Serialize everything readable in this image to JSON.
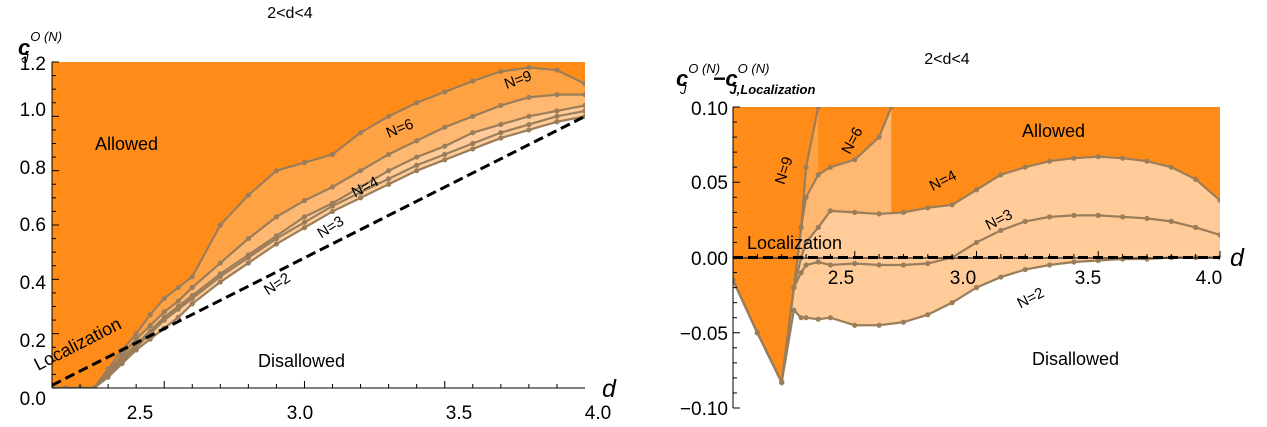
{
  "panels": [
    {
      "title": "2<d<4",
      "ylabel": {
        "main": "c",
        "sub": "J",
        "sup": "O (N)"
      },
      "xvar": "d",
      "region_labels": {
        "allowed": "Allowed",
        "disallowed": "Disallowed"
      },
      "localization_label": "Localization",
      "xticks": [
        "2.5",
        "3.0",
        "3.5",
        "4.0"
      ],
      "yticks": [
        "0.0",
        "0.2",
        "0.4",
        "0.6",
        "0.8",
        "1.0",
        "1.2"
      ]
    },
    {
      "title": "2<d<4",
      "ylabel": {
        "main1": "c",
        "sub1": "J",
        "sup1": "O (N)",
        "minus": "−",
        "main2": "c",
        "sub2a": "J,",
        "sub2b": "Localization",
        "sup2": "O (N)"
      },
      "xvar": "d",
      "region_labels": {
        "allowed": "Allowed",
        "disallowed": "Disallowed"
      },
      "localization_label": "Localization",
      "xticks": [
        "2.5",
        "3.0",
        "3.5",
        "4.0"
      ],
      "yticks": [
        "0.10",
        "0.05",
        "0.00",
        "−0.05",
        "−0.10"
      ]
    }
  ],
  "colors": {
    "allowed": "#ff8c19",
    "band1": "#ffa244",
    "band2": "#ffb871",
    "band3": "#ffcc99",
    "curve": "#9c7d59",
    "localization": "#000000"
  },
  "chart_data": [
    {
      "type": "line",
      "title": "2<d<4",
      "xlabel": "d",
      "ylabel": "c_J^{O(N)}",
      "xlim": [
        2.1,
        4.0
      ],
      "ylim": [
        0,
        1.2
      ],
      "localization_line": {
        "name": "Localization",
        "x": [
          2.1,
          4.0
        ],
        "y": [
          0.01,
          1.0
        ]
      },
      "series": [
        {
          "name": "N=9",
          "x": [
            2.1,
            2.15,
            2.2,
            2.25,
            2.3,
            2.35,
            2.4,
            2.45,
            2.5,
            2.55,
            2.6,
            2.7,
            2.8,
            2.9,
            3.0,
            3.1,
            3.2,
            3.3,
            3.4,
            3.5,
            3.6,
            3.7,
            3.8,
            3.9,
            4.0
          ],
          "y": [
            0.0,
            0.0,
            0.0,
            0.0,
            0.07,
            0.14,
            0.2,
            0.27,
            0.33,
            0.37,
            0.41,
            0.6,
            0.71,
            0.8,
            0.83,
            0.86,
            0.94,
            1.0,
            1.05,
            1.09,
            1.13,
            1.165,
            1.18,
            1.17,
            1.12
          ]
        },
        {
          "name": "N=6",
          "x": [
            2.1,
            2.15,
            2.2,
            2.25,
            2.3,
            2.35,
            2.4,
            2.45,
            2.5,
            2.55,
            2.6,
            2.7,
            2.8,
            2.9,
            3.0,
            3.1,
            3.2,
            3.3,
            3.4,
            3.5,
            3.6,
            3.7,
            3.8,
            3.9,
            4.0
          ],
          "y": [
            0.0,
            0.0,
            0.0,
            0.0,
            0.06,
            0.12,
            0.18,
            0.23,
            0.28,
            0.32,
            0.37,
            0.46,
            0.55,
            0.63,
            0.69,
            0.74,
            0.8,
            0.86,
            0.91,
            0.96,
            1.0,
            1.04,
            1.07,
            1.08,
            1.08
          ]
        },
        {
          "name": "N=4",
          "x": [
            2.1,
            2.15,
            2.2,
            2.25,
            2.3,
            2.35,
            2.4,
            2.45,
            2.5,
            2.55,
            2.6,
            2.7,
            2.8,
            2.9,
            3.0,
            3.1,
            3.2,
            3.3,
            3.4,
            3.5,
            3.6,
            3.7,
            3.8,
            3.9,
            4.0
          ],
          "y": [
            0.0,
            0.0,
            0.0,
            0.0,
            0.06,
            0.11,
            0.16,
            0.21,
            0.26,
            0.3,
            0.34,
            0.42,
            0.49,
            0.56,
            0.63,
            0.68,
            0.74,
            0.8,
            0.85,
            0.89,
            0.94,
            0.97,
            1.0,
            1.02,
            1.04
          ]
        },
        {
          "name": "N=3",
          "x": [
            2.1,
            2.15,
            2.2,
            2.25,
            2.3,
            2.35,
            2.4,
            2.45,
            2.5,
            2.55,
            2.6,
            2.7,
            2.8,
            2.9,
            3.0,
            3.1,
            3.2,
            3.3,
            3.4,
            3.5,
            3.6,
            3.7,
            3.8,
            3.9,
            4.0
          ],
          "y": [
            0.0,
            0.0,
            0.0,
            0.0,
            0.05,
            0.1,
            0.15,
            0.2,
            0.25,
            0.29,
            0.33,
            0.41,
            0.48,
            0.55,
            0.61,
            0.67,
            0.72,
            0.77,
            0.82,
            0.86,
            0.9,
            0.94,
            0.97,
            1.0,
            1.02
          ]
        },
        {
          "name": "N=2",
          "x": [
            2.1,
            2.15,
            2.2,
            2.25,
            2.3,
            2.35,
            2.4,
            2.45,
            2.5,
            2.55,
            2.6,
            2.7,
            2.8,
            2.9,
            3.0,
            3.1,
            3.2,
            3.3,
            3.4,
            3.5,
            3.6,
            3.7,
            3.8,
            3.9,
            4.0
          ],
          "y": [
            0.0,
            0.0,
            0.0,
            0.0,
            0.04,
            0.09,
            0.14,
            0.18,
            0.22,
            0.26,
            0.31,
            0.39,
            0.46,
            0.53,
            0.59,
            0.65,
            0.7,
            0.75,
            0.8,
            0.84,
            0.88,
            0.92,
            0.95,
            0.98,
            1.0
          ]
        }
      ]
    },
    {
      "type": "line",
      "title": "2<d<4",
      "xlabel": "d",
      "ylabel": "c_J^{O(N)} - c_{J,Localization}^{O(N)}",
      "xlim": [
        2.0,
        4.0
      ],
      "ylim": [
        -0.1,
        0.1
      ],
      "localization_line": {
        "name": "Localization",
        "x": [
          2.0,
          4.0
        ],
        "y": [
          0.0,
          0.0
        ]
      },
      "series": [
        {
          "name": "N=9",
          "x": [
            2.0,
            2.1,
            2.2,
            2.25,
            2.28,
            2.3,
            2.35
          ],
          "y": [
            -0.015,
            -0.05,
            -0.083,
            -0.02,
            0.02,
            0.06,
            0.1
          ]
        },
        {
          "name": "N=6",
          "x": [
            2.0,
            2.1,
            2.2,
            2.25,
            2.28,
            2.3,
            2.35,
            2.4,
            2.5,
            2.6,
            2.65
          ],
          "y": [
            -0.015,
            -0.05,
            -0.083,
            -0.02,
            0.02,
            0.04,
            0.055,
            0.06,
            0.065,
            0.08,
            0.1
          ]
        },
        {
          "name": "N=4",
          "x": [
            2.0,
            2.1,
            2.2,
            2.25,
            2.28,
            2.3,
            2.35,
            2.4,
            2.5,
            2.6,
            2.7,
            2.8,
            2.9,
            3.0,
            3.1,
            3.2,
            3.3,
            3.4,
            3.5,
            3.6,
            3.7,
            3.8,
            3.9,
            4.0
          ],
          "y": [
            -0.015,
            -0.05,
            -0.083,
            -0.02,
            0.0,
            0.01,
            0.02,
            0.031,
            0.03,
            0.029,
            0.03,
            0.033,
            0.035,
            0.045,
            0.055,
            0.06,
            0.064,
            0.066,
            0.067,
            0.066,
            0.064,
            0.06,
            0.052,
            0.038
          ]
        },
        {
          "name": "N=3",
          "x": [
            2.0,
            2.1,
            2.2,
            2.25,
            2.28,
            2.3,
            2.35,
            2.4,
            2.5,
            2.6,
            2.7,
            2.8,
            2.9,
            3.0,
            3.1,
            3.2,
            3.3,
            3.4,
            3.5,
            3.6,
            3.7,
            3.8,
            3.9,
            4.0
          ],
          "y": [
            -0.015,
            -0.05,
            -0.083,
            -0.02,
            -0.01,
            -0.005,
            -0.003,
            -0.005,
            -0.004,
            -0.005,
            -0.005,
            -0.004,
            0.0,
            0.01,
            0.018,
            0.024,
            0.027,
            0.028,
            0.028,
            0.027,
            0.026,
            0.024,
            0.02,
            0.015
          ]
        },
        {
          "name": "N=2",
          "x": [
            2.0,
            2.1,
            2.2,
            2.25,
            2.28,
            2.3,
            2.35,
            2.4,
            2.5,
            2.6,
            2.7,
            2.8,
            2.9,
            3.0,
            3.1,
            3.2,
            3.3,
            3.4,
            3.5,
            3.6,
            3.7,
            3.8,
            3.9,
            4.0
          ],
          "y": [
            -0.015,
            -0.05,
            -0.083,
            -0.035,
            -0.04,
            -0.04,
            -0.041,
            -0.04,
            -0.045,
            -0.045,
            -0.043,
            -0.038,
            -0.03,
            -0.02,
            -0.013,
            -0.008,
            -0.005,
            -0.003,
            -0.002,
            -0.001,
            -0.001,
            0.0,
            0.0,
            0.0
          ]
        }
      ]
    }
  ]
}
